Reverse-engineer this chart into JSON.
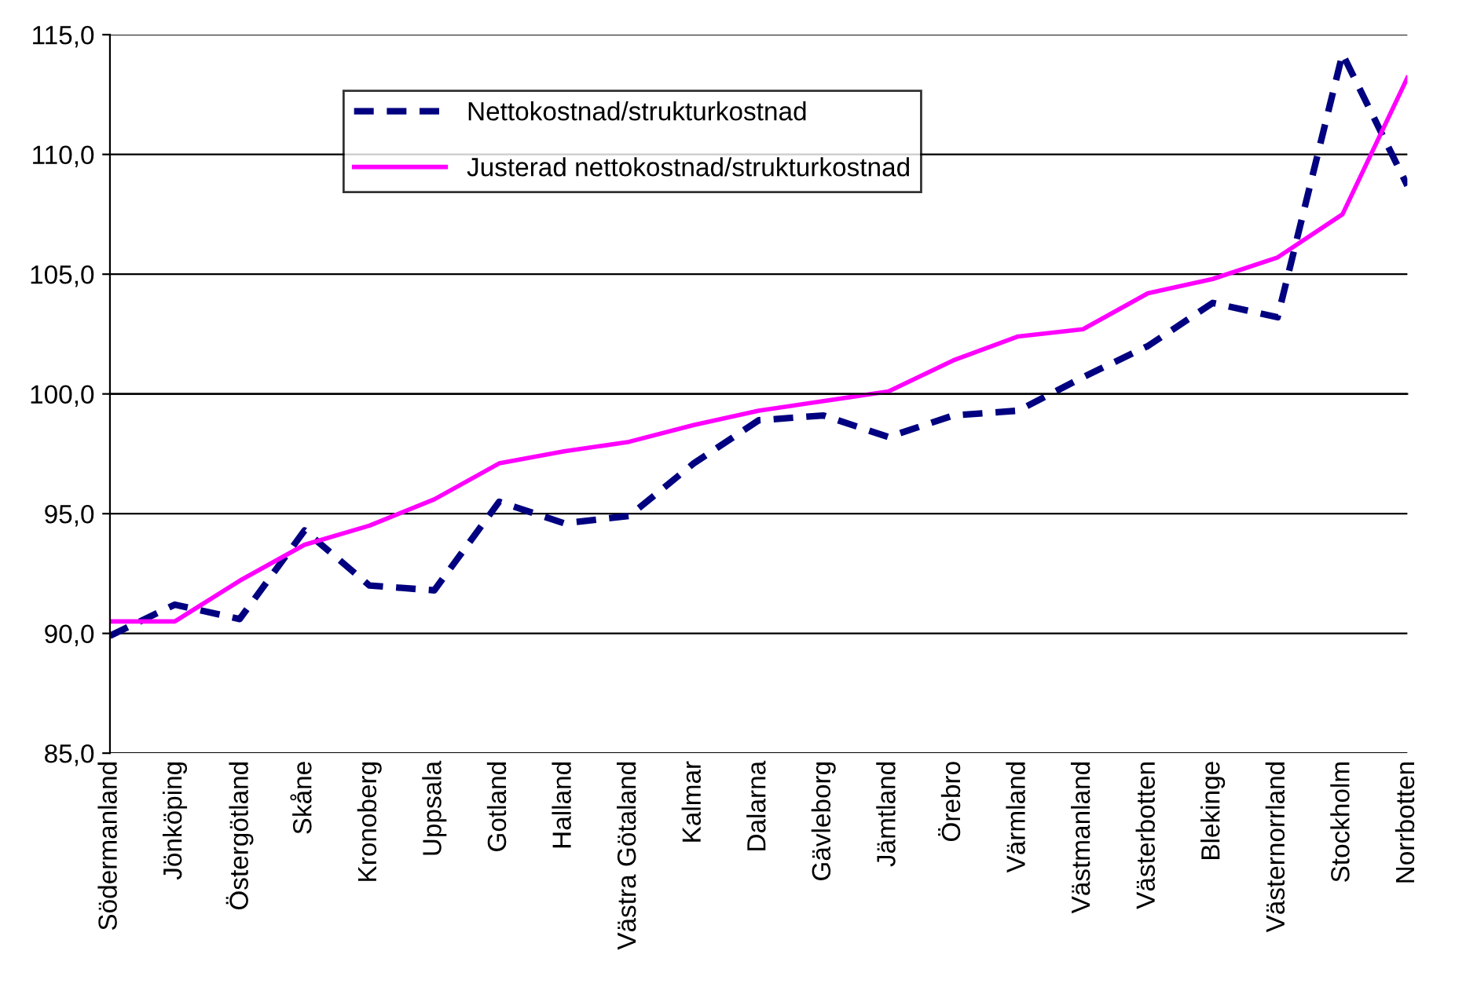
{
  "chart_data": {
    "type": "line",
    "categories": [
      "Södermanland",
      "Jönköping",
      "Östergötland",
      "Skåne",
      "Kronoberg",
      "Uppsala",
      "Gotland",
      "Halland",
      "Västra Götaland",
      "Kalmar",
      "Dalarna",
      "Gävleborg",
      "Jämtland",
      "Örebro",
      "Värmland",
      "Västmanland",
      "Västerbotten",
      "Blekinge",
      "Västernorrland",
      "Stockholm",
      "Norrbotten"
    ],
    "series": [
      {
        "name": "Nettokostnad/strukturkostnad",
        "color": "#000080",
        "line_style": "dashed",
        "values": [
          89.9,
          91.2,
          90.6,
          94.3,
          92.0,
          91.8,
          95.5,
          94.6,
          94.9,
          97.1,
          98.9,
          99.1,
          98.2,
          99.1,
          99.3,
          100.7,
          102.0,
          103.8,
          103.2,
          114.2,
          108.7
        ]
      },
      {
        "name": "Justerad nettokostnad/strukturkostnad",
        "color": "#ff00ff",
        "line_style": "solid",
        "values": [
          90.5,
          90.5,
          92.2,
          93.7,
          94.5,
          95.6,
          97.1,
          97.6,
          98.0,
          98.7,
          99.3,
          99.7,
          100.1,
          101.4,
          102.4,
          102.7,
          104.2,
          104.8,
          105.7,
          107.5,
          113.2
        ]
      }
    ],
    "ylim": [
      85,
      115
    ],
    "yticks": [
      {
        "value": 85,
        "label": "85,0"
      },
      {
        "value": 90,
        "label": "90,0"
      },
      {
        "value": 95,
        "label": "95,0"
      },
      {
        "value": 100,
        "label": "100,0"
      },
      {
        "value": 105,
        "label": "105,0"
      },
      {
        "value": 110,
        "label": "110,0"
      },
      {
        "value": 115,
        "label": "115,0"
      }
    ],
    "grid": "y",
    "legend": "top left",
    "marker": "none"
  }
}
